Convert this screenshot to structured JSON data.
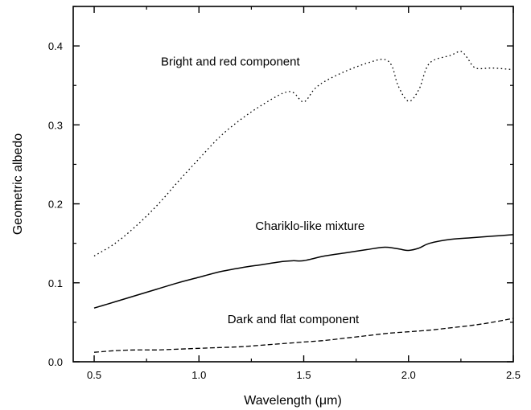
{
  "chart_data": {
    "type": "line",
    "xlabel": "Wavelength (μm)",
    "ylabel": "Geometric albedo",
    "xlim": [
      0.4,
      2.5
    ],
    "ylim": [
      0.0,
      0.45
    ],
    "grid": false,
    "xticks": [
      "0.5",
      "1.0",
      "1.5",
      "2.0",
      "2.5"
    ],
    "yticks": [
      "0.0",
      "0.1",
      "0.2",
      "0.3",
      "0.4"
    ],
    "series": [
      {
        "name": "Bright and red component",
        "style": "dotted",
        "color": "#000000",
        "x": [
          0.5,
          0.6,
          0.7,
          0.8,
          0.9,
          1.0,
          1.1,
          1.2,
          1.3,
          1.4,
          1.45,
          1.5,
          1.55,
          1.6,
          1.7,
          1.8,
          1.88,
          1.92,
          1.95,
          2.0,
          2.05,
          2.1,
          2.2,
          2.25,
          2.28,
          2.32,
          2.4,
          2.5
        ],
        "y": [
          0.134,
          0.15,
          0.172,
          0.198,
          0.228,
          0.257,
          0.285,
          0.307,
          0.325,
          0.34,
          0.341,
          0.329,
          0.345,
          0.355,
          0.368,
          0.378,
          0.383,
          0.375,
          0.35,
          0.33,
          0.345,
          0.378,
          0.388,
          0.393,
          0.385,
          0.372,
          0.372,
          0.37
        ]
      },
      {
        "name": "Chariklo-like mixture",
        "style": "solid",
        "color": "#000000",
        "x": [
          0.5,
          0.6,
          0.7,
          0.8,
          0.9,
          1.0,
          1.1,
          1.2,
          1.3,
          1.4,
          1.45,
          1.5,
          1.6,
          1.7,
          1.8,
          1.88,
          1.93,
          1.97,
          2.0,
          2.05,
          2.1,
          2.2,
          2.3,
          2.4,
          2.5
        ],
        "y": [
          0.068,
          0.076,
          0.084,
          0.092,
          0.1,
          0.107,
          0.114,
          0.119,
          0.123,
          0.127,
          0.128,
          0.128,
          0.134,
          0.138,
          0.142,
          0.145,
          0.144,
          0.142,
          0.141,
          0.144,
          0.15,
          0.155,
          0.157,
          0.159,
          0.161
        ]
      },
      {
        "name": "Dark and flat component",
        "style": "dashed",
        "color": "#000000",
        "x": [
          0.5,
          0.6,
          0.7,
          0.8,
          0.9,
          1.0,
          1.1,
          1.2,
          1.3,
          1.4,
          1.5,
          1.6,
          1.7,
          1.8,
          1.9,
          2.0,
          2.1,
          2.2,
          2.3,
          2.4,
          2.5
        ],
        "y": [
          0.012,
          0.014,
          0.015,
          0.015,
          0.016,
          0.017,
          0.018,
          0.019,
          0.021,
          0.023,
          0.025,
          0.027,
          0.03,
          0.033,
          0.036,
          0.038,
          0.04,
          0.043,
          0.046,
          0.05,
          0.055
        ]
      }
    ],
    "annotations": [
      {
        "text": "Bright and red component",
        "series": 0,
        "x": 1.15,
        "y": 0.375
      },
      {
        "text": "Chariklo-like mixture",
        "series": 1,
        "x": 1.53,
        "y": 0.167
      },
      {
        "text": "Dark and flat component",
        "series": 2,
        "x": 1.45,
        "y": 0.049
      }
    ]
  }
}
